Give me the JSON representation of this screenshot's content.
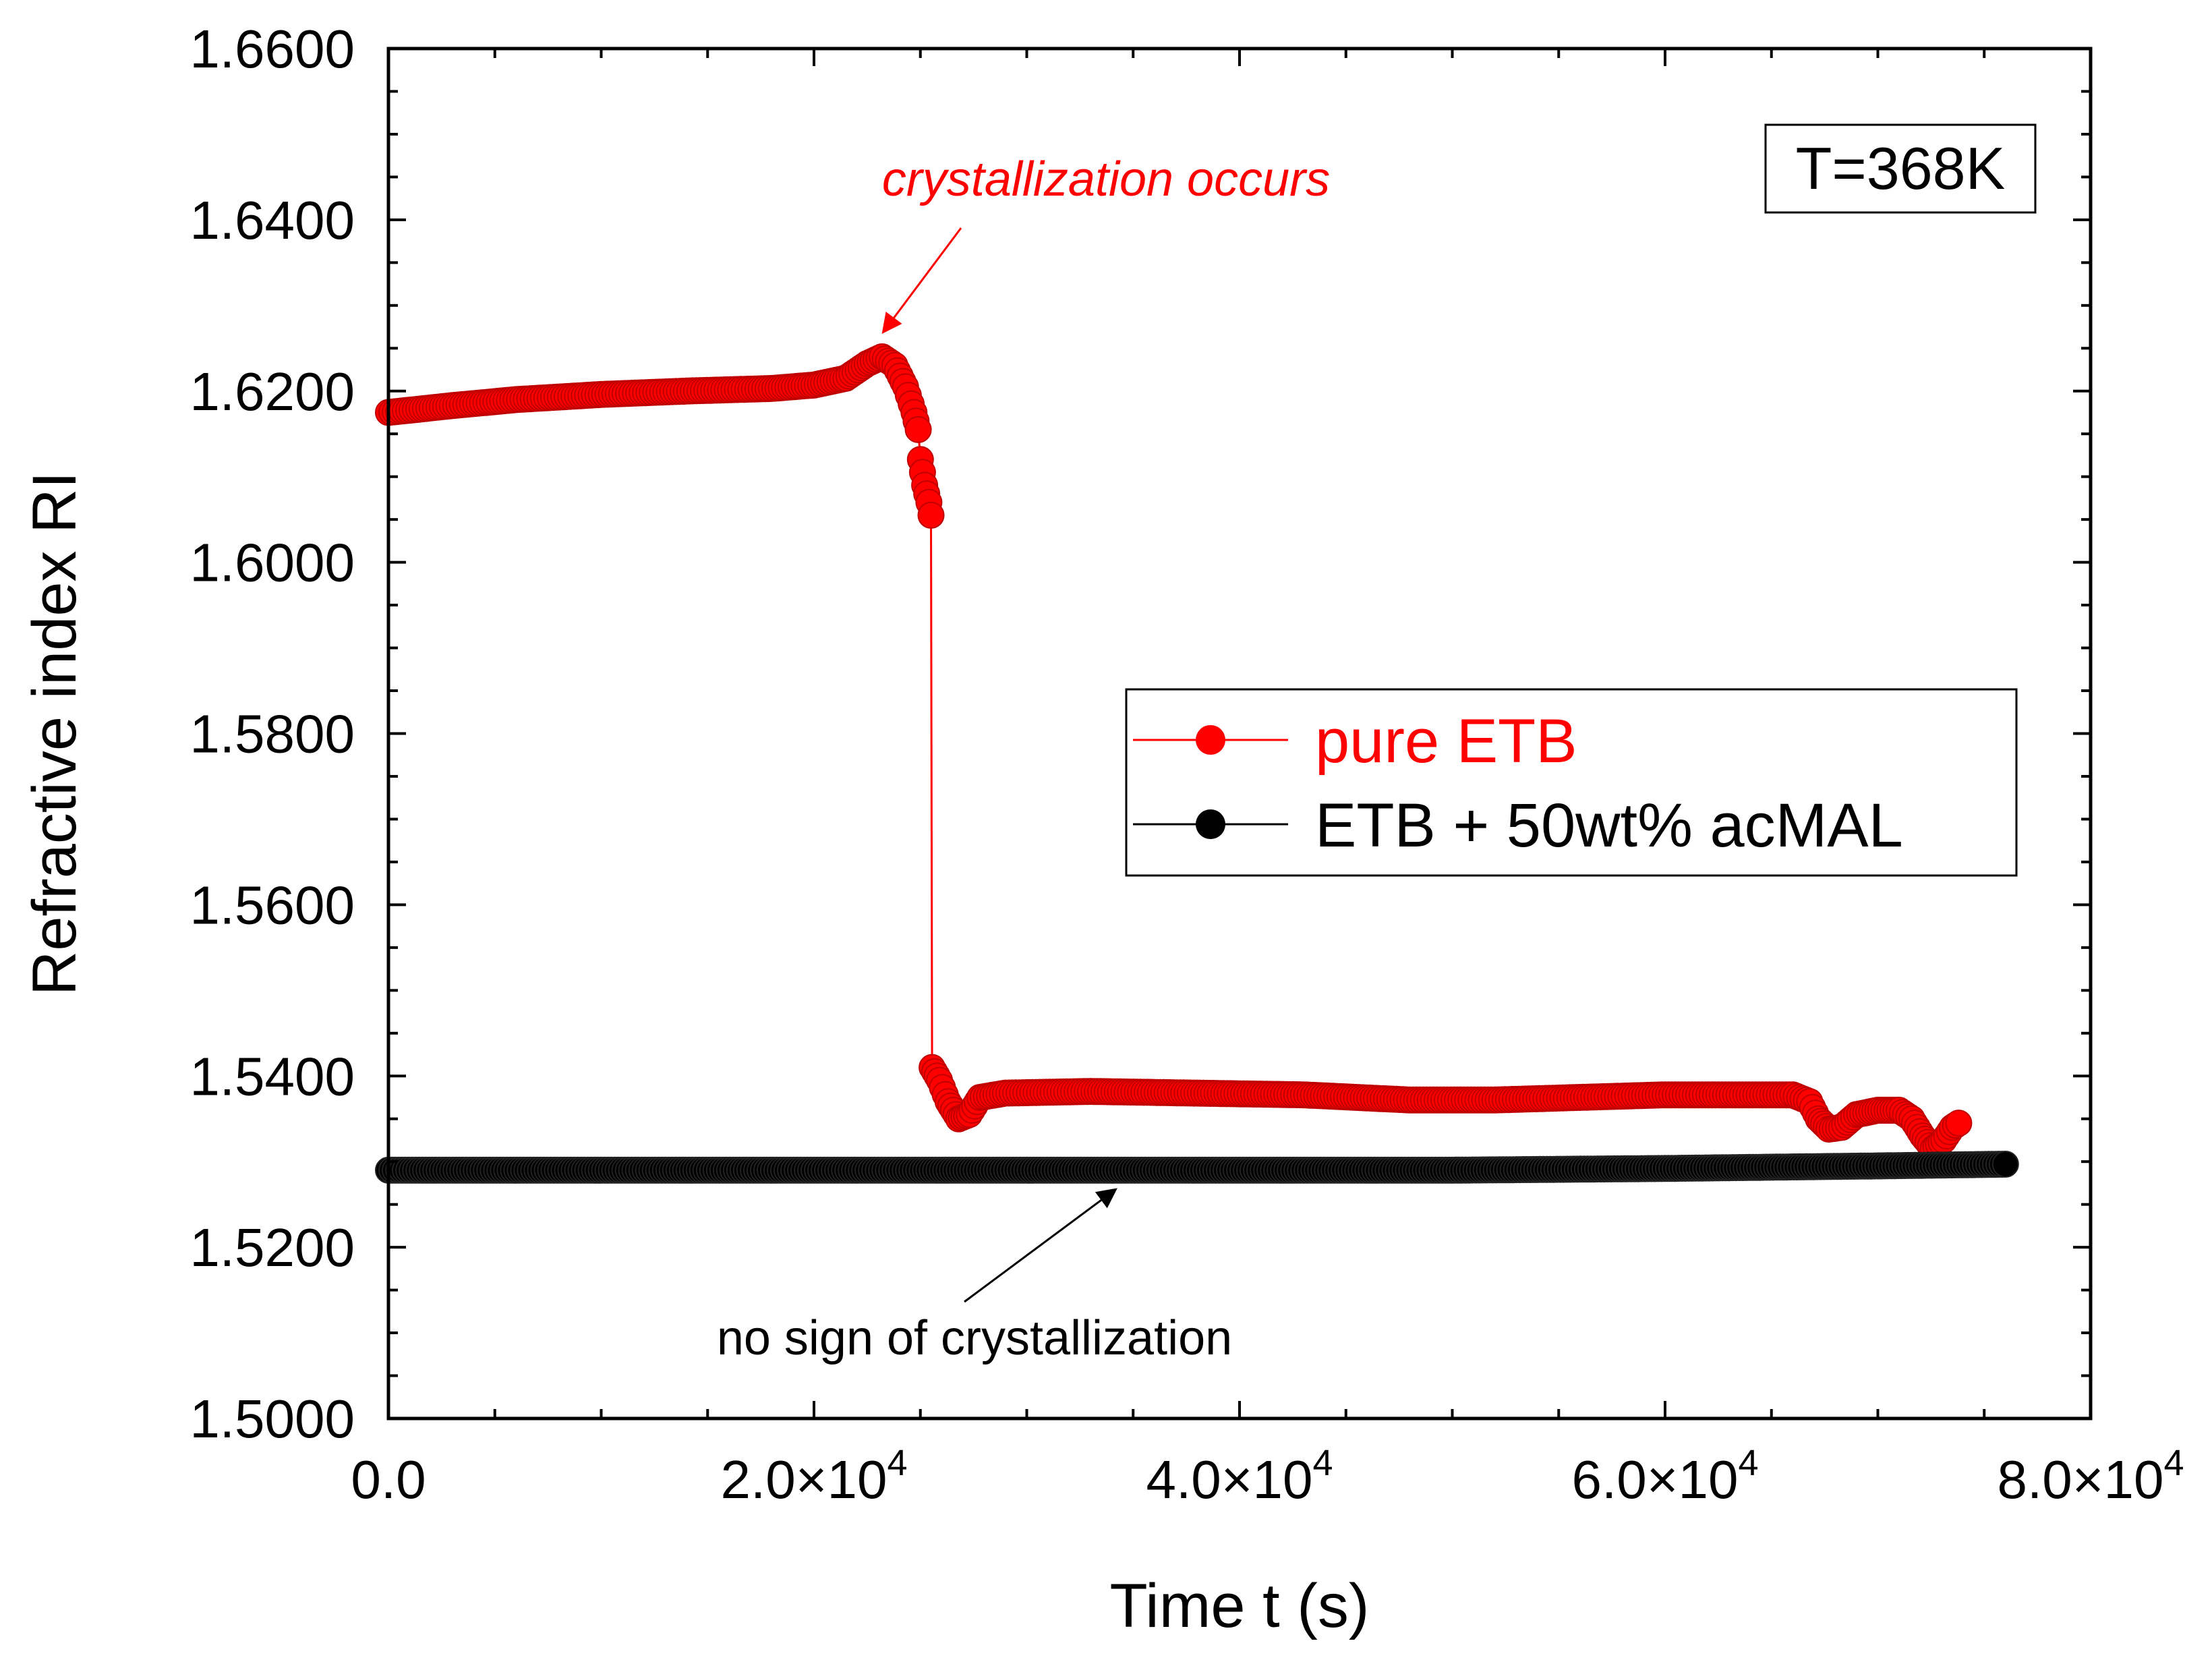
{
  "chart_data": {
    "type": "scatter",
    "title": "",
    "xlabel": "Time t (s)",
    "ylabel": "Refractive index RI",
    "xlim": [
      0,
      80000
    ],
    "ylim": [
      1.5,
      1.66
    ],
    "x_ticks": [
      {
        "value": 0,
        "label": "0.0",
        "exp": ""
      },
      {
        "value": 20000,
        "label": "2.0×10",
        "exp": "4"
      },
      {
        "value": 40000,
        "label": "4.0×10",
        "exp": "4"
      },
      {
        "value": 60000,
        "label": "6.0×10",
        "exp": "4"
      },
      {
        "value": 80000,
        "label": "8.0×10",
        "exp": "4"
      }
    ],
    "y_ticks": [
      {
        "value": 1.5,
        "label": "1.5000"
      },
      {
        "value": 1.52,
        "label": "1.5200"
      },
      {
        "value": 1.54,
        "label": "1.5400"
      },
      {
        "value": 1.56,
        "label": "1.5600"
      },
      {
        "value": 1.58,
        "label": "1.5800"
      },
      {
        "value": 1.6,
        "label": "1.6000"
      },
      {
        "value": 1.62,
        "label": "1.6200"
      },
      {
        "value": 1.64,
        "label": "1.6400"
      },
      {
        "value": 1.66,
        "label": "1.6600"
      }
    ],
    "legend_position": "center-right",
    "series": [
      {
        "name": "pure ETB",
        "color": "#ff0000",
        "points": [
          [
            0,
            1.6175
          ],
          [
            3000,
            1.6183
          ],
          [
            6000,
            1.619
          ],
          [
            10000,
            1.6196
          ],
          [
            14000,
            1.62
          ],
          [
            18000,
            1.6203
          ],
          [
            20000,
            1.6207
          ],
          [
            21500,
            1.6215
          ],
          [
            22500,
            1.6232
          ],
          [
            23200,
            1.624
          ],
          [
            23800,
            1.623
          ],
          [
            24300,
            1.6205
          ],
          [
            24700,
            1.6175
          ],
          [
            24900,
            1.6155
          ],
          [
            25000,
            1.612
          ],
          [
            25200,
            1.609
          ],
          [
            25400,
            1.607
          ],
          [
            25500,
            1.6055
          ],
          [
            25550,
            1.541
          ],
          [
            25900,
            1.5395
          ],
          [
            26300,
            1.537
          ],
          [
            26800,
            1.535
          ],
          [
            27300,
            1.5355
          ],
          [
            27800,
            1.5375
          ],
          [
            29000,
            1.538
          ],
          [
            33000,
            1.5382
          ],
          [
            38000,
            1.538
          ],
          [
            43000,
            1.5378
          ],
          [
            48000,
            1.5372
          ],
          [
            52000,
            1.5372
          ],
          [
            56000,
            1.5375
          ],
          [
            60000,
            1.5378
          ],
          [
            63000,
            1.5378
          ],
          [
            66000,
            1.5378
          ],
          [
            66800,
            1.537
          ],
          [
            67200,
            1.535
          ],
          [
            67700,
            1.5338
          ],
          [
            68300,
            1.534
          ],
          [
            69000,
            1.5355
          ],
          [
            70000,
            1.536
          ],
          [
            71000,
            1.536
          ],
          [
            71600,
            1.535
          ],
          [
            72100,
            1.533
          ],
          [
            72600,
            1.5315
          ],
          [
            73100,
            1.5325
          ],
          [
            73500,
            1.534
          ],
          [
            73800,
            1.5345
          ]
        ]
      },
      {
        "name": "ETB + 50wt% acMAL",
        "color": "#000000",
        "points": [
          [
            0,
            1.529
          ],
          [
            10000,
            1.529
          ],
          [
            20000,
            1.529
          ],
          [
            30000,
            1.529
          ],
          [
            40000,
            1.529
          ],
          [
            50000,
            1.529
          ],
          [
            60000,
            1.5292
          ],
          [
            70000,
            1.5295
          ],
          [
            76000,
            1.5297
          ]
        ]
      }
    ],
    "annotations": [
      {
        "text": "crystallization occurs",
        "color": "#ff0000",
        "target_x": 23500,
        "target_y": 1.6245
      },
      {
        "text": "no sign of crystallization",
        "color": "#000000",
        "target_x": 34500,
        "target_y": 1.5285
      }
    ],
    "inset_label": "T=368K"
  }
}
